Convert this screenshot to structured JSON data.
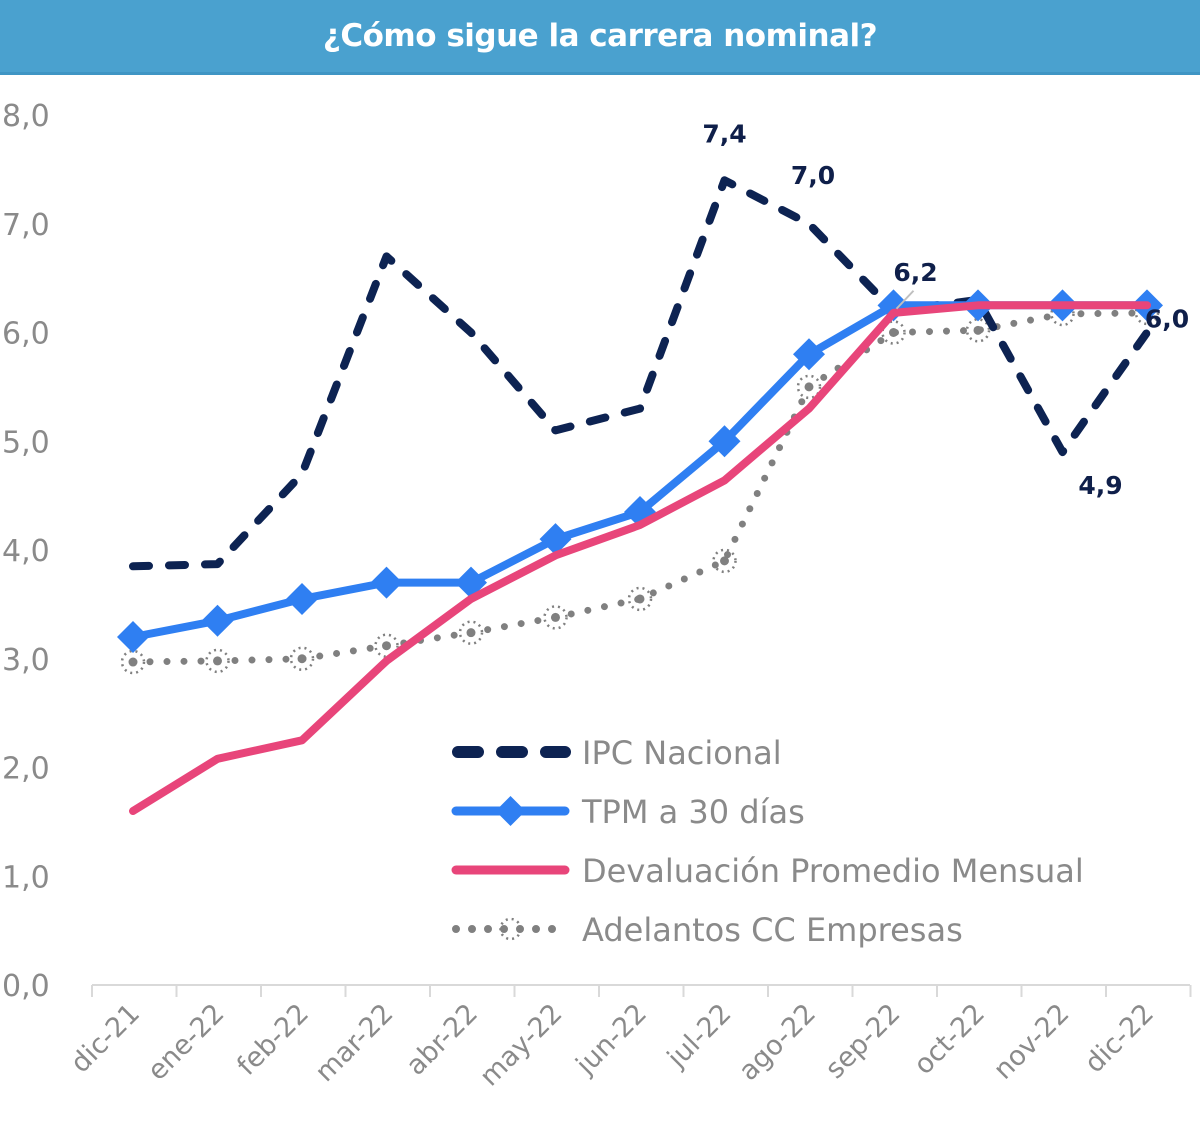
{
  "header": {
    "title": "¿Cómo sigue la carrera nominal?"
  },
  "colors": {
    "header_bg": "#4aa1cf",
    "ipc": "#0d2352",
    "tpm": "#2f7ff2",
    "devaluacion": "#e8457a",
    "adelantos": "#808080",
    "axis_text": "#8a8a8a",
    "axis_line": "#d9d9d9"
  },
  "chart_data": {
    "type": "line",
    "title": "¿Cómo sigue la carrera nominal?",
    "xlabel": "",
    "ylabel": "",
    "ylim": [
      0,
      8
    ],
    "yticks": [
      "0,0",
      "1,0",
      "2,0",
      "3,0",
      "4,0",
      "5,0",
      "6,0",
      "7,0",
      "8,0"
    ],
    "grid": false,
    "legend_position": "bottom-right",
    "categories": [
      "dic-21",
      "ene-22",
      "feb-22",
      "mar-22",
      "abr-22",
      "may-22",
      "jun-22",
      "jul-22",
      "ago-22",
      "sep-22",
      "oct-22",
      "nov-22",
      "dic-22"
    ],
    "series": [
      {
        "name": "IPC Nacional",
        "style": "dashed",
        "values": [
          3.85,
          3.87,
          4.7,
          6.7,
          6.0,
          5.1,
          5.3,
          7.4,
          7.0,
          6.2,
          6.3,
          4.9,
          6.0
        ]
      },
      {
        "name": "TPM a 30 días",
        "style": "solid-diamond",
        "values": [
          3.2,
          3.35,
          3.55,
          3.7,
          3.7,
          4.1,
          4.35,
          5.0,
          5.8,
          6.25,
          6.25,
          6.25,
          6.25
        ]
      },
      {
        "name": "Devaluación Promedio Mensual",
        "style": "solid",
        "values": [
          1.6,
          2.08,
          2.25,
          2.98,
          3.55,
          3.95,
          4.23,
          4.64,
          5.3,
          6.18,
          6.25,
          6.25,
          6.25
        ]
      },
      {
        "name": "Adelantos CC Empresas",
        "style": "dotted-circle",
        "values": [
          2.97,
          2.98,
          3.0,
          3.12,
          3.24,
          3.38,
          3.55,
          3.9,
          5.5,
          6.0,
          6.02,
          6.17,
          6.18
        ]
      }
    ],
    "annotations": [
      {
        "series": "IPC Nacional",
        "category": "jul-22",
        "text": "7,4"
      },
      {
        "series": "IPC Nacional",
        "category": "ago-22",
        "text": "7,0"
      },
      {
        "series": "IPC Nacional",
        "category": "sep-22",
        "text": "6,2"
      },
      {
        "series": "IPC Nacional",
        "category": "nov-22",
        "text": "4,9"
      },
      {
        "series": "IPC Nacional",
        "category": "dic-22",
        "text": "6,0"
      }
    ]
  }
}
